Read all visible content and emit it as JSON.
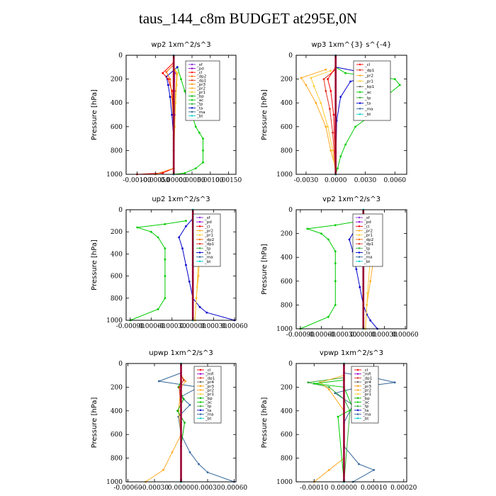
{
  "title": "taus_144_c8m  BUDGET at295E,0N",
  "colors": {
    "sf": "#8a2be2",
    "pd": "#9400d3",
    "cl": "#ff0000",
    "mfl": "#9400d3",
    "dp1": "#e0301e",
    "dp2": "#ff6600",
    "pr1": "#ffcc33",
    "pr2": "#ffaa22",
    "pr3": "#ff9900",
    "bp": "#00b000",
    "ac": "#00cc00",
    "tp": "#33aa33",
    "ta": "#0000cc",
    "ma": "#336699",
    "bt": "#00cccc",
    "mean": "#9a0030",
    "frame": "#000000"
  },
  "chart_data": [
    {
      "type": "line",
      "title": "wp2  1xm^2/s^3",
      "ylabel": "Pressure [hPa]",
      "ylim": [
        1000,
        0
      ],
      "xlim": [
        -0.0013,
        0.0017
      ],
      "xticks": [
        -0.001,
        -0.0005,
        0.0,
        0.0005,
        0.001,
        0.0015
      ],
      "xtick_labels": [
        "-0.00100",
        "-0.00050",
        "0.00000",
        "0.00050",
        "0.00100",
        "0.00150"
      ],
      "yticks": [
        0,
        200,
        400,
        600,
        800,
        1000
      ],
      "legend": [
        "sf",
        "pd",
        "cl",
        "dp2",
        "dp1",
        "pr3",
        "pr2",
        "pr1",
        "bp",
        "ac",
        "tp",
        "ta",
        "ma",
        "bt"
      ],
      "series": [
        {
          "name": "ac",
          "x": [
            0.0001,
            0.0002,
            0.0003,
            0.0004,
            0.0005,
            0.0006,
            0.0007,
            0.0008,
            0.0008,
            0.0008,
            0.0006,
            0.0003,
            0.0
          ],
          "y": [
            100,
            200,
            300,
            400,
            500,
            600,
            650,
            700,
            800,
            900,
            950,
            990,
            1000
          ]
        },
        {
          "name": "ta",
          "x": [
            0.0001,
            -0.0002,
            -0.00015,
            -0.0001,
            -5e-05,
            0.0,
            0.0,
            0.0
          ],
          "y": [
            100,
            180,
            250,
            350,
            500,
            700,
            900,
            1000
          ]
        },
        {
          "name": "cl",
          "x": [
            0.0,
            -0.0003,
            -0.00015,
            -5e-05,
            0.0,
            0.0,
            0.0,
            -0.0003,
            -0.001
          ],
          "y": [
            60,
            150,
            200,
            300,
            500,
            800,
            950,
            990,
            1000
          ]
        },
        {
          "name": "dp2",
          "x": [
            0.0,
            -0.0002,
            -0.0001,
            -5e-05,
            0.0,
            0.0,
            -0.0005
          ],
          "y": [
            80,
            140,
            200,
            350,
            600,
            950,
            1000
          ]
        },
        {
          "name": "pr1",
          "x": [
            0.0,
            0.0001,
            8e-05,
            5e-05,
            3e-05,
            0.0,
            0.0
          ],
          "y": [
            100,
            150,
            250,
            400,
            600,
            900,
            1000
          ]
        },
        {
          "name": "pr2",
          "x": [
            0.0,
            8e-05,
            5e-05,
            3e-05,
            0.0,
            0.0
          ],
          "y": [
            100,
            160,
            300,
            500,
            800,
            1000
          ]
        },
        {
          "name": "sf",
          "x": [
            0.0,
            3e-05,
            2e-05,
            2e-05,
            0.0,
            0.0
          ],
          "y": [
            100,
            150,
            300,
            500,
            800,
            1000
          ]
        },
        {
          "name": "bt",
          "x": [
            0.0,
            0.0,
            0.0
          ],
          "y": [
            0,
            500,
            1000
          ]
        }
      ]
    },
    {
      "type": "line",
      "title": "wp3  1xm^{3} s^{-4}",
      "ylabel": "Pressure [hPa]",
      "ylim": [
        1000,
        0
      ],
      "xlim": [
        -0.004,
        0.0072
      ],
      "xticks": [
        -0.003,
        0.0,
        0.003,
        0.006
      ],
      "xtick_labels": [
        "-0.0030",
        "0.0000",
        "0.0030",
        "0.0060"
      ],
      "yticks": [
        0,
        200,
        400,
        600,
        800,
        1000
      ],
      "legend": [
        "cl",
        "dp1",
        "pr2",
        "pr1",
        "bp1",
        "ac",
        "tp",
        "ta",
        "ma",
        "bt"
      ],
      "series": [
        {
          "name": "ac",
          "x": [
            0.0,
            0.001,
            0.006,
            0.0065,
            0.005,
            0.004,
            0.002,
            0.001,
            0.0005,
            0.0002,
            0.0
          ],
          "y": [
            100,
            150,
            200,
            250,
            350,
            480,
            600,
            750,
            850,
            950,
            1000
          ]
        },
        {
          "name": "ta",
          "x": [
            0.0,
            0.0025,
            0.0035,
            0.0015,
            0.0005,
            0.0001,
            0.0
          ],
          "y": [
            100,
            140,
            170,
            220,
            350,
            550,
            1000
          ]
        },
        {
          "name": "pr2",
          "x": [
            -0.001,
            -0.0035,
            -0.003,
            -0.002,
            -0.001,
            -0.0005,
            0.0,
            0.0
          ],
          "y": [
            120,
            190,
            250,
            400,
            600,
            800,
            950,
            1000
          ]
        },
        {
          "name": "pr1",
          "x": [
            -0.0005,
            -0.0025,
            -0.0022,
            -0.0015,
            -0.0008,
            -0.0003,
            0.0
          ],
          "y": [
            130,
            190,
            260,
            400,
            600,
            800,
            1000
          ]
        },
        {
          "name": "dp1",
          "x": [
            0.0,
            -0.0012,
            -0.001,
            -0.0006,
            -0.0003,
            0.0
          ],
          "y": [
            120,
            200,
            300,
            450,
            650,
            1000
          ]
        },
        {
          "name": "cl",
          "x": [
            0.0,
            -0.0008,
            -0.0005,
            -0.0002,
            0.0
          ],
          "y": [
            100,
            200,
            300,
            500,
            1000
          ]
        },
        {
          "name": "bt",
          "x": [
            0.0,
            0.0,
            0.0
          ],
          "y": [
            0,
            500,
            1000
          ]
        }
      ]
    },
    {
      "type": "line",
      "title": "up2  1xm^2/s^3",
      "ylabel": "Pressure [hPa]",
      "ylim": [
        1000,
        0
      ],
      "xlim": [
        -0.00096,
        0.00062
      ],
      "xticks": [
        -0.0009,
        -0.0006,
        -0.0003,
        0.0,
        0.0003,
        0.0006
      ],
      "xtick_labels": [
        "-0.00090",
        "-0.00060",
        "-0.00030",
        "0.00000",
        "0.00030",
        "0.00060"
      ],
      "yticks": [
        0,
        200,
        400,
        600,
        800,
        1000
      ],
      "legend": [
        "sf",
        "pd",
        "cl",
        "pr2",
        "pr1",
        "dp2",
        "dp1",
        "tp",
        "ta",
        "ma",
        "bt"
      ],
      "series": [
        {
          "name": "ac",
          "x": [
            -0.0001,
            -0.0004,
            -0.0008,
            -0.0006,
            -0.0005,
            -0.0004,
            -0.0004,
            -0.0004,
            -0.0004,
            -0.0005,
            -0.0009
          ],
          "y": [
            100,
            130,
            160,
            200,
            250,
            350,
            450,
            600,
            800,
            900,
            1000
          ]
        },
        {
          "name": "ta",
          "x": [
            0.0,
            -0.0001,
            -0.0002,
            -0.00015,
            -0.0001,
            -5e-05,
            0.0,
            0.0001,
            0.0002,
            0.0006
          ],
          "y": [
            80,
            150,
            250,
            350,
            500,
            650,
            800,
            880,
            930,
            1000
          ]
        },
        {
          "name": "pr2",
          "x": [
            0.0001,
            0.0002,
            0.00015,
            0.0001,
            8e-05,
            5e-05,
            3e-05
          ],
          "y": [
            100,
            150,
            250,
            400,
            600,
            800,
            1000
          ]
        },
        {
          "name": "pr1",
          "x": [
            5e-05,
            0.00012,
            0.0001,
            8e-05,
            6e-05,
            3e-05
          ],
          "y": [
            100,
            150,
            250,
            400,
            700,
            1000
          ]
        },
        {
          "name": "cl",
          "x": [
            0.0,
            0.0001,
            5e-05,
            0.0,
            0.0
          ],
          "y": [
            100,
            150,
            250,
            500,
            1000
          ]
        },
        {
          "name": "bt",
          "x": [
            0.0,
            0.0,
            0.0
          ],
          "y": [
            0,
            500,
            1000
          ]
        }
      ]
    },
    {
      "type": "line",
      "title": "vp2  1xm^2/s^3",
      "ylabel": "Pressure [hPa]",
      "ylim": [
        1000,
        0
      ],
      "xlim": [
        -0.00096,
        0.00062
      ],
      "xticks": [
        -0.0009,
        -0.0006,
        -0.0003,
        0.0,
        0.0003,
        0.0006
      ],
      "xtick_labels": [
        "-0.00090",
        "-0.00060",
        "-0.00030",
        "0.00000",
        "0.00030",
        "0.00060"
      ],
      "yticks": [
        0,
        200,
        400,
        600,
        800,
        1000
      ],
      "legend": [
        "sf",
        "pd",
        "cl",
        "pr2",
        "pr1",
        "dp2",
        "dp1",
        "tp",
        "ta",
        "ma",
        "bt"
      ],
      "series": [
        {
          "name": "ac",
          "x": [
            -0.0001,
            -0.0004,
            -0.0008,
            -0.0006,
            -0.0005,
            -0.0004,
            -0.0004,
            -0.0004,
            -0.0004,
            -0.0005,
            -0.0009
          ],
          "y": [
            100,
            130,
            160,
            200,
            250,
            350,
            450,
            600,
            800,
            900,
            1000
          ]
        },
        {
          "name": "ta",
          "x": [
            0.0,
            -0.0001,
            -0.0002,
            -0.00015,
            -0.0001,
            -5e-05,
            0.0,
            5e-05,
            0.0001,
            0.0002
          ],
          "y": [
            80,
            150,
            250,
            350,
            500,
            650,
            800,
            880,
            930,
            1000
          ]
        },
        {
          "name": "pr2",
          "x": [
            0.0001,
            0.00025,
            0.0002,
            0.00015,
            0.0001,
            5e-05,
            3e-05
          ],
          "y": [
            100,
            150,
            250,
            400,
            600,
            800,
            1000
          ]
        },
        {
          "name": "pr1",
          "x": [
            5e-05,
            0.00015,
            0.00012,
            0.0001,
            6e-05,
            3e-05
          ],
          "y": [
            100,
            150,
            250,
            400,
            700,
            1000
          ]
        },
        {
          "name": "cl",
          "x": [
            0.0,
            0.0001,
            5e-05,
            0.0,
            0.0
          ],
          "y": [
            100,
            150,
            250,
            500,
            1000
          ]
        },
        {
          "name": "bt",
          "x": [
            0.0,
            0.0,
            0.0
          ],
          "y": [
            0,
            500,
            1000
          ]
        }
      ]
    },
    {
      "type": "line",
      "title": "upwp  1xm^2/s^3",
      "ylabel": "Pressure [hPa]",
      "ylim": [
        1000,
        0
      ],
      "xlim": [
        -0.00062,
        0.00062
      ],
      "xticks": [
        -0.0006,
        -0.0003,
        0.0,
        0.0003,
        0.0006
      ],
      "xtick_labels": [
        "-0.00060",
        "-0.00030",
        "0.00000",
        "0.00030",
        "0.00060"
      ],
      "yticks": [
        0,
        200,
        400,
        600,
        800,
        1000
      ],
      "legend": [
        "cl",
        "mfl",
        "dp1",
        "pr4",
        "pr3",
        "pr2",
        "pr1",
        "bp",
        "ac",
        "tp",
        "ta",
        "ma",
        "bt"
      ],
      "series": [
        {
          "name": "ma",
          "x": [
            0.0,
            -0.00025,
            0.0002,
            0.0,
            0.0001,
            -3e-05,
            0.0,
            0.0001,
            0.0002,
            0.0003,
            0.0006
          ],
          "y": [
            80,
            150,
            200,
            280,
            350,
            450,
            600,
            750,
            850,
            920,
            1000
          ]
        },
        {
          "name": "pr2",
          "x": [
            0.0,
            5e-05,
            0.0,
            -3e-05,
            0.0,
            -0.0001,
            -0.0002,
            -0.0004
          ],
          "y": [
            100,
            150,
            200,
            400,
            600,
            750,
            900,
            1000
          ]
        },
        {
          "name": "bp",
          "x": [
            0.0,
            -3e-05,
            3e-05,
            -4e-05,
            4e-05,
            0.0,
            0.0
          ],
          "y": [
            150,
            200,
            300,
            400,
            500,
            700,
            1000
          ]
        },
        {
          "name": "dp1",
          "x": [
            0.0,
            3e-05,
            -2e-05,
            0.0,
            0.0
          ],
          "y": [
            100,
            140,
            200,
            400,
            1000
          ]
        },
        {
          "name": "bt",
          "x": [
            0.0,
            0.0,
            0.0
          ],
          "y": [
            0,
            500,
            1000
          ]
        }
      ]
    },
    {
      "type": "line",
      "title": "vpwp  1xm^2/s^3",
      "ylabel": "Pressure [hPa]",
      "ylim": [
        1000,
        0
      ],
      "xlim": [
        -0.00016,
        0.00021
      ],
      "xticks": [
        -0.0001,
        0.0,
        0.0001,
        0.0002
      ],
      "xtick_labels": [
        "-0.00010",
        "0.00000",
        "0.00010",
        "0.00020"
      ],
      "yticks": [
        0,
        200,
        400,
        600,
        800,
        1000
      ],
      "legend": [
        "cl",
        "mfl",
        "dp1",
        "pr4",
        "pr3",
        "pr2",
        "pr1",
        "bp",
        "ac",
        "tp",
        "ta",
        "ma",
        "bt"
      ],
      "series": [
        {
          "name": "ma",
          "x": [
            0.0,
            0.0001,
            0.00017,
            5e-05,
            -3e-05,
            3e-05,
            0.0,
            0.0,
            5e-05,
            0.0001,
            3e-05
          ],
          "y": [
            80,
            120,
            160,
            200,
            250,
            350,
            500,
            700,
            850,
            900,
            1000
          ]
        },
        {
          "name": "tp",
          "x": [
            0.0,
            -0.00012,
            -5e-05,
            0.0,
            2e-05,
            0.0
          ],
          "y": [
            120,
            160,
            200,
            300,
            400,
            1000
          ]
        },
        {
          "name": "pr2",
          "x": [
            0.0,
            -8e-05,
            -5e-05,
            0.0,
            0.0,
            -5e-05,
            -0.0001
          ],
          "y": [
            100,
            160,
            220,
            400,
            800,
            900,
            1000
          ]
        },
        {
          "name": "ac",
          "x": [
            0.0,
            -0.0001,
            0.0,
            3e-05,
            -2e-05,
            0.0
          ],
          "y": [
            140,
            170,
            200,
            380,
            450,
            1000
          ]
        },
        {
          "name": "bt",
          "x": [
            0.0,
            0.0,
            0.0
          ],
          "y": [
            0,
            500,
            1000
          ]
        }
      ]
    }
  ]
}
